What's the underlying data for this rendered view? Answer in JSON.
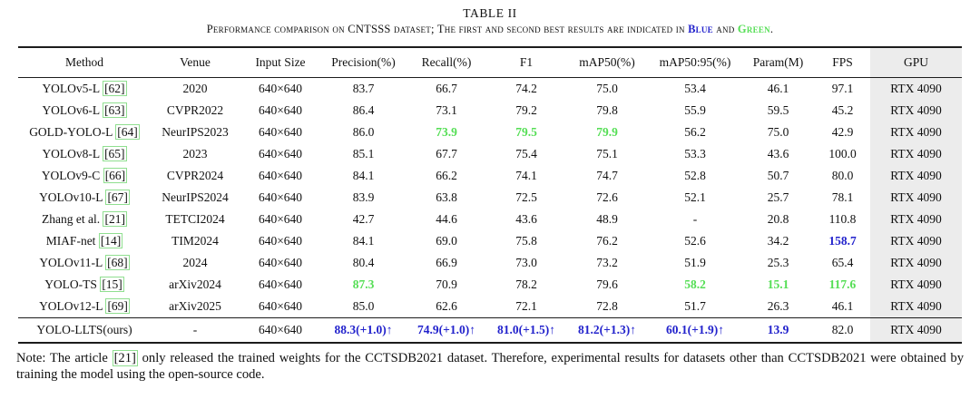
{
  "colors": {
    "blue": "#2222cc",
    "green": "#54de54",
    "link_box_green": "#90df90",
    "gpu_column_bg": "#ececec"
  },
  "table": {
    "label": "TABLE II",
    "caption": {
      "text_before": "Performance comparison on CNTSSS dataset; The first and second best results are indicated in ",
      "blue_word": "Blue",
      "between": " and ",
      "green_word": "Green",
      "after": "."
    },
    "columns": [
      "Method",
      "Venue",
      "Input Size",
      "Precision(%)",
      "Recall(%)",
      "F1",
      "mAP50(%)",
      "mAP50:95(%)",
      "Param(M)",
      "FPS",
      "GPU"
    ],
    "rows": [
      {
        "method": "YOLOv5-L",
        "cite": "[62]",
        "venue": "2020",
        "input": "640×640",
        "vals": [
          "83.7",
          "66.7",
          "74.2",
          "75.0",
          "53.4",
          "46.1",
          "97.1"
        ],
        "hl": [
          "",
          "",
          "",
          "",
          "",
          "",
          ""
        ],
        "gpu": "RTX 4090",
        "ours": false
      },
      {
        "method": "YOLOv6-L",
        "cite": "[63]",
        "venue": "CVPR2022",
        "input": "640×640",
        "vals": [
          "86.4",
          "73.1",
          "79.2",
          "79.8",
          "55.9",
          "59.5",
          "45.2"
        ],
        "hl": [
          "",
          "",
          "",
          "",
          "",
          "",
          ""
        ],
        "gpu": "RTX 4090",
        "ours": false
      },
      {
        "method": "GOLD-YOLO-L",
        "cite": "[64]",
        "venue": "NeurIPS2023",
        "input": "640×640",
        "vals": [
          "86.0",
          "73.9",
          "79.5",
          "79.9",
          "56.2",
          "75.0",
          "42.9"
        ],
        "hl": [
          "",
          "g",
          "g",
          "g",
          "",
          "",
          ""
        ],
        "gpu": "RTX 4090",
        "ours": false
      },
      {
        "method": "YOLOv8-L",
        "cite": "[65]",
        "venue": "2023",
        "input": "640×640",
        "vals": [
          "85.1",
          "67.7",
          "75.4",
          "75.1",
          "53.3",
          "43.6",
          "100.0"
        ],
        "hl": [
          "",
          "",
          "",
          "",
          "",
          "",
          ""
        ],
        "gpu": "RTX 4090",
        "ours": false
      },
      {
        "method": "YOLOv9-C",
        "cite": "[66]",
        "venue": "CVPR2024",
        "input": "640×640",
        "vals": [
          "84.1",
          "66.2",
          "74.1",
          "74.7",
          "52.8",
          "50.7",
          "80.0"
        ],
        "hl": [
          "",
          "",
          "",
          "",
          "",
          "",
          ""
        ],
        "gpu": "RTX 4090",
        "ours": false
      },
      {
        "method": "YOLOv10-L",
        "cite": "[67]",
        "venue": "NeurIPS2024",
        "input": "640×640",
        "vals": [
          "83.9",
          "63.8",
          "72.5",
          "72.6",
          "52.1",
          "25.7",
          "78.1"
        ],
        "hl": [
          "",
          "",
          "",
          "",
          "",
          "",
          ""
        ],
        "gpu": "RTX 4090",
        "ours": false
      },
      {
        "method": "Zhang et al.",
        "cite": "[21]",
        "venue": "TETCI2024",
        "input": "640×640",
        "vals": [
          "42.7",
          "44.6",
          "43.6",
          "48.9",
          "-",
          "20.8",
          "110.8"
        ],
        "hl": [
          "",
          "",
          "",
          "",
          "",
          "",
          ""
        ],
        "gpu": "RTX 4090",
        "ours": false
      },
      {
        "method": "MIAF-net",
        "cite": "[14]",
        "venue": "TIM2024",
        "input": "640×640",
        "vals": [
          "84.1",
          "69.0",
          "75.8",
          "76.2",
          "52.6",
          "34.2",
          "158.7"
        ],
        "hl": [
          "",
          "",
          "",
          "",
          "",
          "",
          "b"
        ],
        "gpu": "RTX 4090",
        "ours": false
      },
      {
        "method": "YOLOv11-L",
        "cite": "[68]",
        "venue": "2024",
        "input": "640×640",
        "vals": [
          "80.4",
          "66.9",
          "73.0",
          "73.2",
          "51.9",
          "25.3",
          "65.4"
        ],
        "hl": [
          "",
          "",
          "",
          "",
          "",
          "",
          ""
        ],
        "gpu": "RTX 4090",
        "ours": false
      },
      {
        "method": "YOLO-TS",
        "cite": "[15]",
        "venue": "arXiv2024",
        "input": "640×640",
        "vals": [
          "87.3",
          "70.9",
          "78.2",
          "79.6",
          "58.2",
          "15.1",
          "117.6"
        ],
        "hl": [
          "g",
          "",
          "",
          "",
          "g",
          "g",
          "g"
        ],
        "gpu": "RTX 4090",
        "ours": false
      },
      {
        "method": "YOLOv12-L",
        "cite": "[69]",
        "venue": "arXiv2025",
        "input": "640×640",
        "vals": [
          "85.0",
          "62.6",
          "72.1",
          "72.8",
          "51.7",
          "26.3",
          "46.1"
        ],
        "hl": [
          "",
          "",
          "",
          "",
          "",
          "",
          ""
        ],
        "gpu": "RTX 4090",
        "ours": false
      },
      {
        "method": "YOLO-LLTS(ours)",
        "cite": "",
        "venue": "-",
        "input": "640×640",
        "vals": [
          "88.3(+1.0)↑",
          "74.9(+1.0)↑",
          "81.0(+1.5)↑",
          "81.2(+1.3)↑",
          "60.1(+1.9)↑",
          "13.9",
          "82.0"
        ],
        "hl": [
          "b",
          "b",
          "b",
          "b",
          "b",
          "b",
          ""
        ],
        "gpu": "RTX 4090",
        "ours": true
      }
    ]
  },
  "note": {
    "before_cite": "Note: The article ",
    "cite": "[21]",
    "after_cite": " only released the trained weights for the CCTSDB2021 dataset. Therefore, experimental results for datasets other than CCTSDB2021 were obtained by training the model using the open-source code."
  }
}
